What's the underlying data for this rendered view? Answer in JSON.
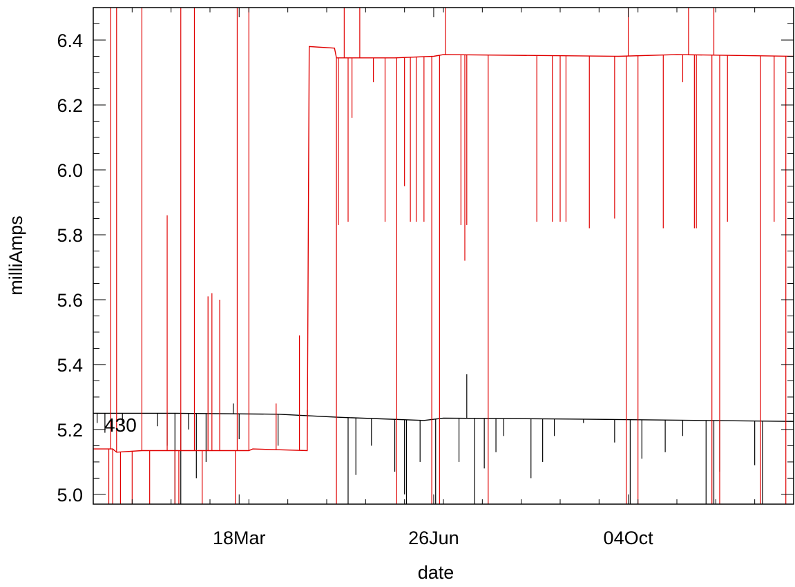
{
  "chart_data": {
    "type": "line",
    "title": "",
    "xlabel": "date",
    "ylabel": "milliAmps",
    "xlim": [
      0,
      360
    ],
    "ylim": [
      4.97,
      6.5
    ],
    "x_ticks": [
      {
        "label": "18Mar",
        "x": 75
      },
      {
        "label": "26Jun",
        "x": 175
      },
      {
        "label": "04Oct",
        "x": 275
      }
    ],
    "y_ticks": [
      5.0,
      5.2,
      5.4,
      5.6,
      5.8,
      6.0,
      6.2,
      6.4
    ],
    "y_tick_labels": [
      "5.0",
      "5.2",
      "5.4",
      "5.6",
      "5.8",
      "6.0",
      "6.2",
      "6.4"
    ],
    "grid": false,
    "annotations": [
      {
        "text": "430",
        "x": 5,
        "y": 5.215
      }
    ],
    "series": [
      {
        "color": "#000000",
        "baseline": [
          [
            0,
            5.25
          ],
          [
            40,
            5.25
          ],
          [
            95,
            5.247
          ],
          [
            125,
            5.238
          ],
          [
            170,
            5.228
          ],
          [
            180,
            5.235
          ],
          [
            250,
            5.232
          ],
          [
            360,
            5.225
          ]
        ],
        "spikes": [
          {
            "x": 2,
            "to": 5.22
          },
          {
            "x": 6,
            "to": 5.19
          },
          {
            "x": 15,
            "to": 5.22
          },
          {
            "x": 33,
            "to": 5.21
          },
          {
            "x": 38,
            "to": 5.15
          },
          {
            "x": 42,
            "to": 4.97
          },
          {
            "x": 45,
            "to": 4.97
          },
          {
            "x": 49,
            "to": 5.2
          },
          {
            "x": 53,
            "to": 5.05
          },
          {
            "x": 58,
            "to": 5.1
          },
          {
            "x": 72,
            "to": 5.28
          },
          {
            "x": 75,
            "to": 5.17
          },
          {
            "x": 95,
            "to": 5.15
          },
          {
            "x": 110,
            "to": 5.26
          },
          {
            "x": 131,
            "to": 4.97
          },
          {
            "x": 135,
            "to": 5.06
          },
          {
            "x": 143,
            "to": 5.15
          },
          {
            "x": 155,
            "to": 5.07
          },
          {
            "x": 160,
            "to": 5.0
          },
          {
            "x": 161,
            "to": 4.97
          },
          {
            "x": 168,
            "to": 5.1
          },
          {
            "x": 176,
            "to": 4.97
          },
          {
            "x": 188,
            "to": 5.1
          },
          {
            "x": 192,
            "to": 5.37
          },
          {
            "x": 196,
            "to": 4.97
          },
          {
            "x": 201,
            "to": 5.08
          },
          {
            "x": 207,
            "to": 5.13
          },
          {
            "x": 211,
            "to": 5.18
          },
          {
            "x": 225,
            "to": 5.05
          },
          {
            "x": 231,
            "to": 5.1
          },
          {
            "x": 237,
            "to": 5.18
          },
          {
            "x": 252,
            "to": 5.22
          },
          {
            "x": 268,
            "to": 5.16
          },
          {
            "x": 276,
            "to": 4.97
          },
          {
            "x": 282,
            "to": 5.11
          },
          {
            "x": 294,
            "to": 5.13
          },
          {
            "x": 303,
            "to": 5.18
          },
          {
            "x": 315,
            "to": 4.97
          },
          {
            "x": 319,
            "to": 4.97
          },
          {
            "x": 322,
            "to": 5.07
          },
          {
            "x": 340,
            "to": 5.09
          },
          {
            "x": 344,
            "to": 4.97
          }
        ]
      },
      {
        "color": "#e00000",
        "baseline": [
          [
            0,
            5.14
          ],
          [
            10,
            5.14
          ],
          [
            12,
            5.13
          ],
          [
            25,
            5.135
          ],
          [
            50,
            5.135
          ],
          [
            52,
            5.135
          ],
          [
            80,
            5.135
          ],
          [
            82,
            5.14
          ],
          [
            110,
            5.135
          ],
          [
            111,
            6.38
          ],
          [
            124,
            6.375
          ],
          [
            125,
            6.345
          ],
          [
            155,
            6.345
          ],
          [
            175,
            6.35
          ],
          [
            180,
            6.355
          ],
          [
            270,
            6.35
          ],
          [
            300,
            6.355
          ],
          [
            360,
            6.35
          ]
        ],
        "spikes": [
          {
            "x": 8,
            "to": 4.97
          },
          {
            "x": 9,
            "to": 6.5
          },
          {
            "x": 10,
            "to": 4.97
          },
          {
            "x": 12,
            "to": 6.5
          },
          {
            "x": 14,
            "to": 4.97
          },
          {
            "x": 20,
            "to": 4.97
          },
          {
            "x": 25,
            "to": 6.5
          },
          {
            "x": 29,
            "to": 4.97
          },
          {
            "x": 38,
            "to": 5.86
          },
          {
            "x": 42,
            "to": 4.97
          },
          {
            "x": 44,
            "to": 4.97
          },
          {
            "x": 45,
            "to": 6.5
          },
          {
            "x": 52,
            "to": 6.5
          },
          {
            "x": 56,
            "to": 4.97
          },
          {
            "x": 59,
            "to": 5.61
          },
          {
            "x": 61,
            "to": 5.62
          },
          {
            "x": 65,
            "to": 5.6
          },
          {
            "x": 73,
            "to": 4.97
          },
          {
            "x": 74,
            "to": 6.5
          },
          {
            "x": 80,
            "to": 6.5
          },
          {
            "x": 94,
            "to": 5.28
          },
          {
            "x": 106,
            "to": 5.49
          },
          {
            "x": 125,
            "to": 4.97
          },
          {
            "x": 126,
            "to": 5.83
          },
          {
            "x": 129,
            "to": 6.5
          },
          {
            "x": 131,
            "to": 5.84
          },
          {
            "x": 133,
            "to": 6.16
          },
          {
            "x": 137,
            "to": 6.5
          },
          {
            "x": 144,
            "to": 6.27
          },
          {
            "x": 150,
            "to": 5.84
          },
          {
            "x": 156,
            "to": 4.97
          },
          {
            "x": 160,
            "to": 5.95
          },
          {
            "x": 163,
            "to": 5.84
          },
          {
            "x": 166,
            "to": 5.84
          },
          {
            "x": 170,
            "to": 5.84
          },
          {
            "x": 174,
            "to": 4.97
          },
          {
            "x": 178,
            "to": 4.97
          },
          {
            "x": 181,
            "to": 6.5
          },
          {
            "x": 189,
            "to": 5.83
          },
          {
            "x": 191,
            "to": 5.72
          },
          {
            "x": 192,
            "to": 5.83
          },
          {
            "x": 203,
            "to": 4.97
          },
          {
            "x": 228,
            "to": 5.84
          },
          {
            "x": 236,
            "to": 5.84
          },
          {
            "x": 240,
            "to": 5.84
          },
          {
            "x": 243,
            "to": 5.84
          },
          {
            "x": 255,
            "to": 5.82
          },
          {
            "x": 268,
            "to": 5.85
          },
          {
            "x": 274,
            "to": 4.97
          },
          {
            "x": 275,
            "to": 6.5
          },
          {
            "x": 280,
            "to": 4.97
          },
          {
            "x": 293,
            "to": 5.82
          },
          {
            "x": 303,
            "to": 6.27
          },
          {
            "x": 306,
            "to": 6.5
          },
          {
            "x": 309,
            "to": 5.82
          },
          {
            "x": 310,
            "to": 5.82
          },
          {
            "x": 318,
            "to": 4.97
          },
          {
            "x": 319,
            "to": 6.5
          },
          {
            "x": 322,
            "to": 4.97
          },
          {
            "x": 326,
            "to": 5.84
          },
          {
            "x": 343,
            "to": 4.97
          },
          {
            "x": 350,
            "to": 5.84
          },
          {
            "x": 356,
            "to": 4.97
          }
        ]
      }
    ]
  }
}
